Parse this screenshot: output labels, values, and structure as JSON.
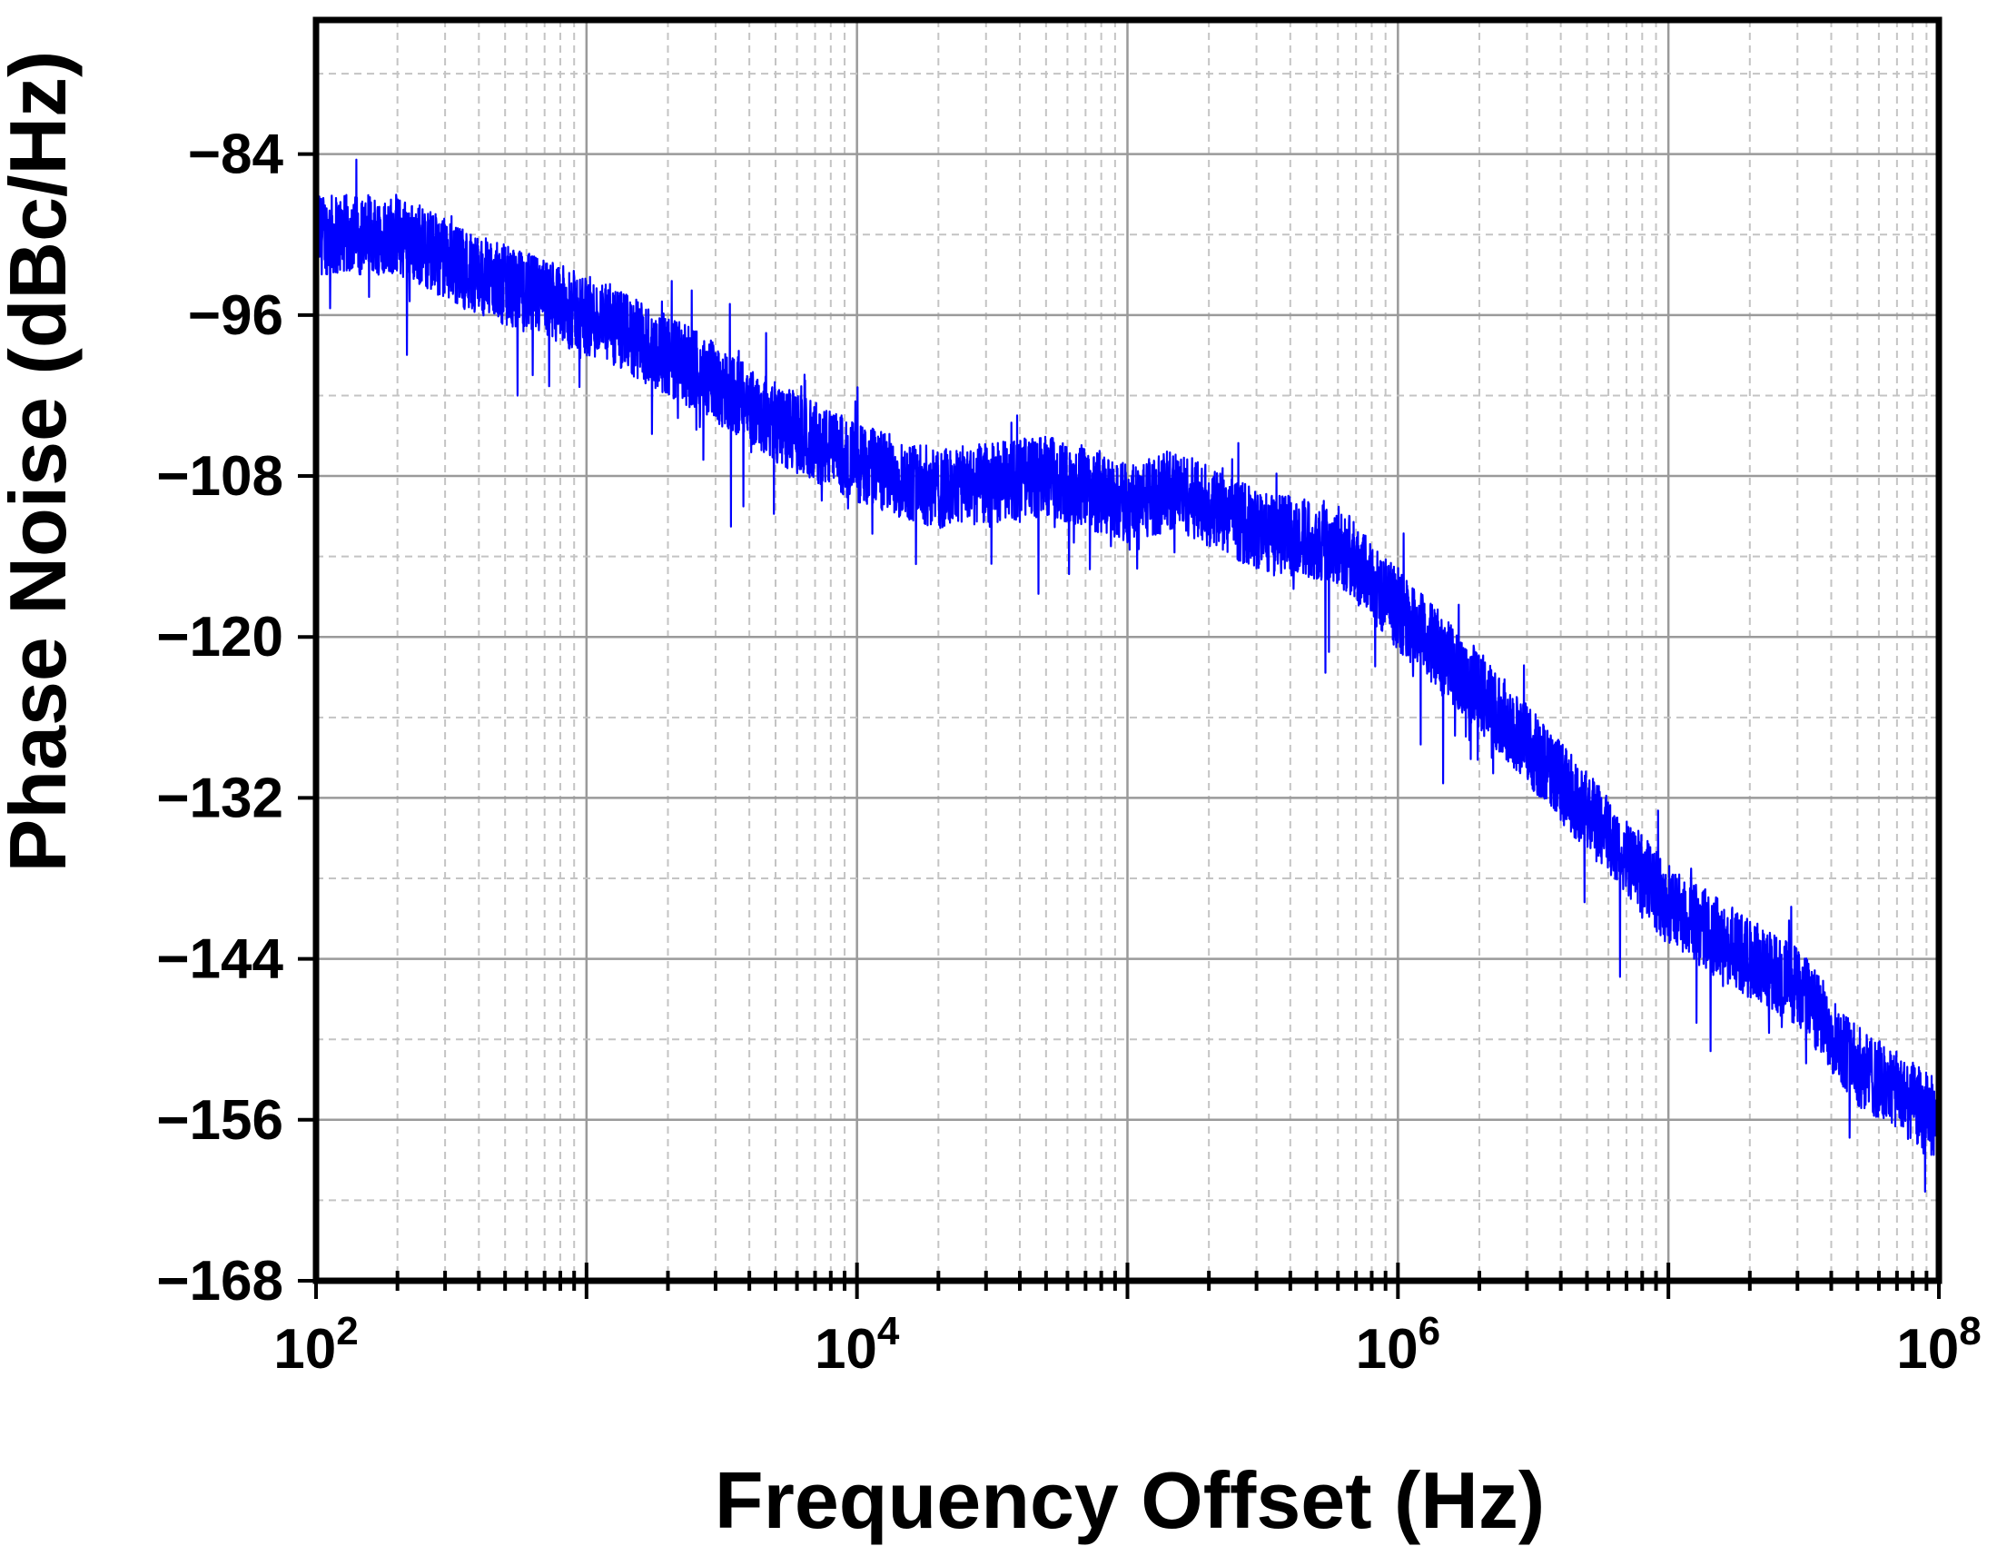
{
  "chart_data": {
    "type": "line",
    "xlabel": "Frequency Offset (Hz)",
    "ylabel": "Phase Noise (dBc/Hz)",
    "x_scale": "log",
    "xlim": [
      100,
      100000000
    ],
    "ylim": [
      -168,
      -74
    ],
    "grid": true,
    "x_ticks": [
      {
        "value": 100,
        "base": "10",
        "exp": "2"
      },
      {
        "value": 10000,
        "base": "10",
        "exp": "4"
      },
      {
        "value": 1000000,
        "base": "10",
        "exp": "6"
      },
      {
        "value": 100000000,
        "base": "10",
        "exp": "8"
      }
    ],
    "y_ticks": [
      {
        "value": -84,
        "label": "−84"
      },
      {
        "value": -96,
        "label": "−96"
      },
      {
        "value": -108,
        "label": "−108"
      },
      {
        "value": -120,
        "label": "−120"
      },
      {
        "value": -132,
        "label": "−132"
      },
      {
        "value": -144,
        "label": "−144"
      },
      {
        "value": -156,
        "label": "−156"
      },
      {
        "value": -168,
        "label": "−168"
      }
    ],
    "series": [
      {
        "color": "#0000ff",
        "noise_amplitude_db": 3,
        "points": [
          {
            "x": 100,
            "y": -90
          },
          {
            "x": 200,
            "y": -90
          },
          {
            "x": 400,
            "y": -93
          },
          {
            "x": 1000,
            "y": -96
          },
          {
            "x": 2000,
            "y": -99
          },
          {
            "x": 3000,
            "y": -101
          },
          {
            "x": 5000,
            "y": -104
          },
          {
            "x": 10000,
            "y": -107
          },
          {
            "x": 20000,
            "y": -109
          },
          {
            "x": 50000,
            "y": -108
          },
          {
            "x": 100000,
            "y": -110
          },
          {
            "x": 150000,
            "y": -109
          },
          {
            "x": 300000,
            "y": -112
          },
          {
            "x": 600000,
            "y": -113
          },
          {
            "x": 1000000,
            "y": -118
          },
          {
            "x": 2000000,
            "y": -124
          },
          {
            "x": 5000000,
            "y": -133
          },
          {
            "x": 10000000,
            "y": -140
          },
          {
            "x": 20000000,
            "y": -144
          },
          {
            "x": 30000000,
            "y": -146
          },
          {
            "x": 50000000,
            "y": -152
          },
          {
            "x": 100000000,
            "y": -156
          }
        ]
      }
    ]
  }
}
